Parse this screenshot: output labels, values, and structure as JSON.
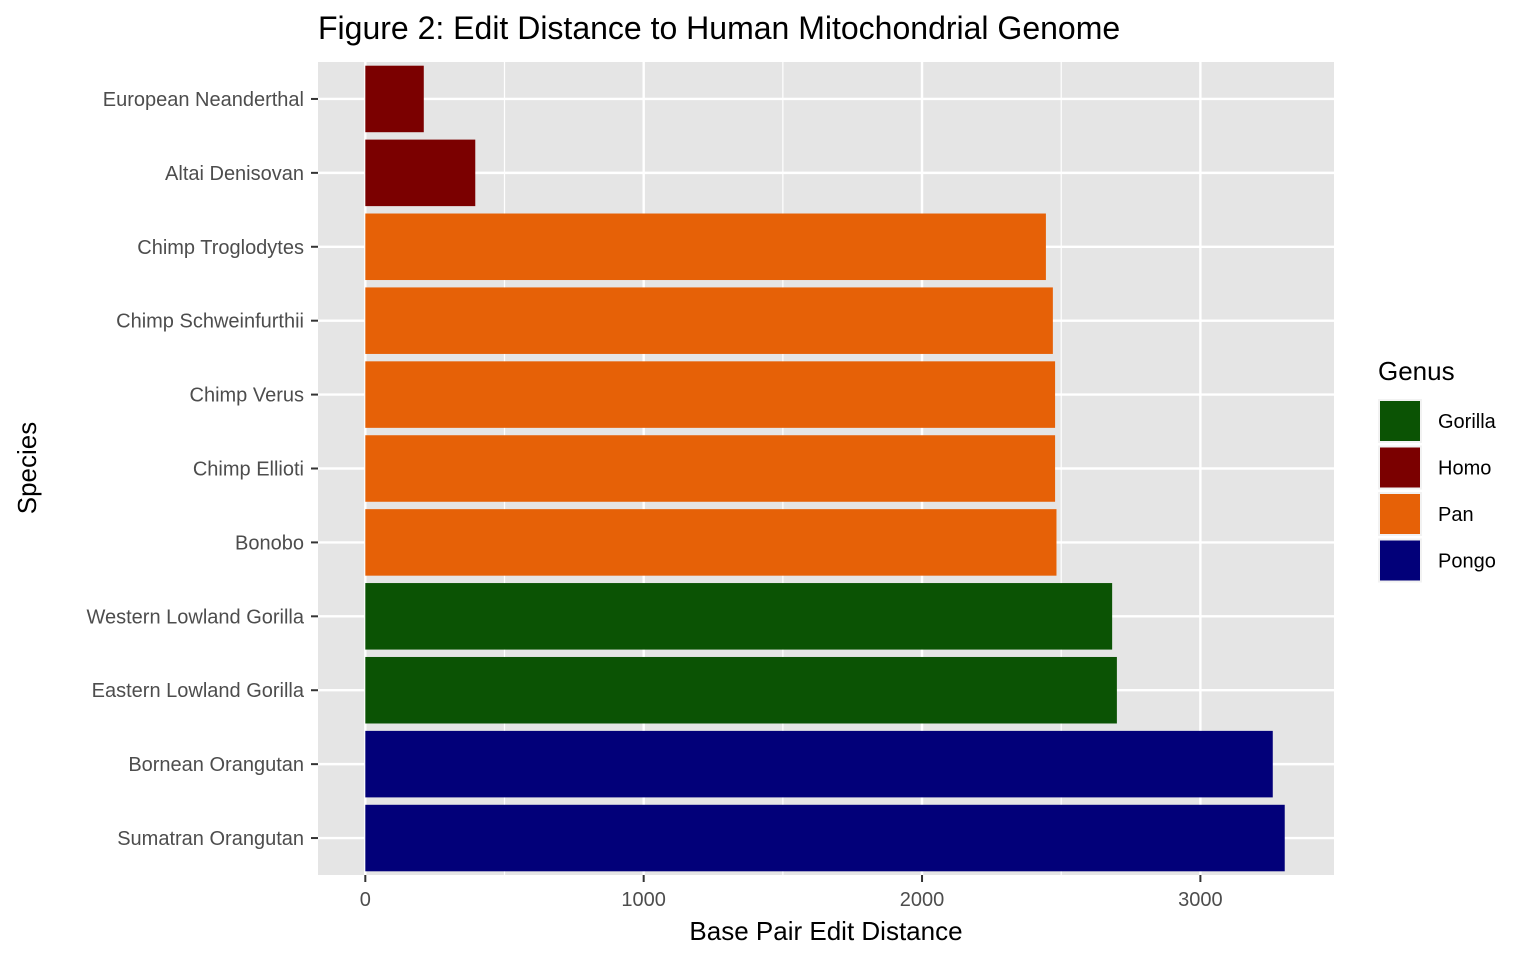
{
  "chart_data": {
    "type": "bar",
    "orientation": "horizontal",
    "title": "Figure 2: Edit Distance to Human Mitochondrial Genome",
    "xlabel": "Base Pair Edit Distance",
    "ylabel": "Species",
    "xlim": [
      -170,
      3480
    ],
    "xticks": [
      0,
      1000,
      2000,
      3000
    ],
    "grid": true,
    "legend": {
      "title": "Genus",
      "placement": "right",
      "entries": [
        {
          "name": "Gorilla",
          "color": "#0b5304"
        },
        {
          "name": "Homo",
          "color": "#7b0000"
        },
        {
          "name": "Pan",
          "color": "#e66107"
        },
        {
          "name": "Pongo",
          "color": "#020079"
        }
      ]
    },
    "categories": [
      "European Neanderthal",
      "Altai Denisovan",
      "Chimp Troglodytes",
      "Chimp Schweinfurthii",
      "Chimp Verus",
      "Chimp Ellioti",
      "Bonobo",
      "Western Lowland Gorilla",
      "Eastern Lowland Gorilla",
      "Bornean Orangutan",
      "Sumatran Orangutan"
    ],
    "values": [
      210,
      395,
      2445,
      2470,
      2478,
      2478,
      2483,
      2683,
      2700,
      3260,
      3303
    ],
    "genus": [
      "Homo",
      "Homo",
      "Pan",
      "Pan",
      "Pan",
      "Pan",
      "Pan",
      "Gorilla",
      "Gorilla",
      "Pongo",
      "Pongo"
    ]
  }
}
